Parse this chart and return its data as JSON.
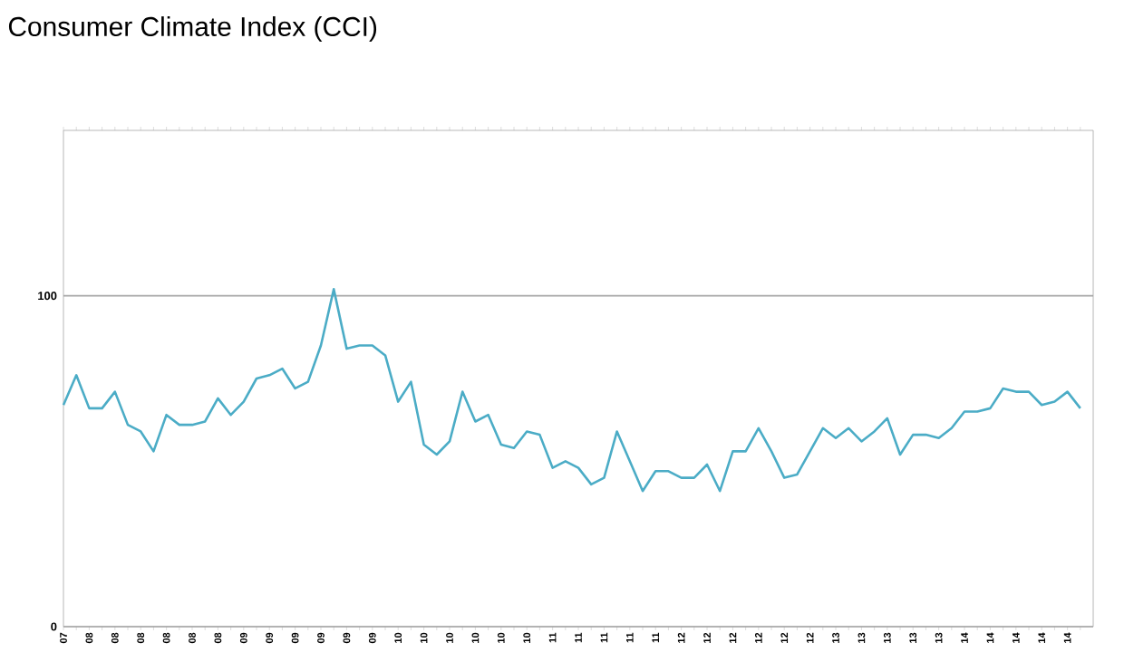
{
  "chart_data": {
    "type": "line",
    "title": "Consumer Climate Index (CCI)",
    "categories": [
      "07",
      null,
      "08",
      null,
      "08",
      null,
      "08",
      null,
      "08",
      null,
      "08",
      null,
      "08",
      null,
      "09",
      null,
      "09",
      null,
      "09",
      null,
      "09",
      null,
      "09",
      null,
      "09",
      null,
      "10",
      null,
      "10",
      null,
      "10",
      null,
      "10",
      null,
      "10",
      null,
      "10",
      null,
      "11",
      null,
      "11",
      null,
      "11",
      null,
      "11",
      null,
      "11",
      null,
      "12",
      null,
      "12",
      null,
      "12",
      null,
      "12",
      null,
      "12",
      null,
      "12",
      null,
      "13",
      null,
      "13",
      null,
      "13",
      null,
      "13",
      null,
      "13",
      null,
      "14",
      null,
      "14",
      null,
      "14",
      null,
      "14",
      null,
      "14",
      null
    ],
    "values": [
      67,
      76,
      66,
      66,
      71,
      61,
      59,
      53,
      64,
      61,
      61,
      62,
      69,
      64,
      68,
      75,
      76,
      78,
      72,
      74,
      85,
      102,
      84,
      85,
      85,
      82,
      68,
      74,
      55,
      52,
      56,
      71,
      62,
      64,
      55,
      54,
      59,
      58,
      48,
      50,
      48,
      43,
      45,
      59,
      50,
      41,
      47,
      47,
      45,
      45,
      49,
      41,
      53,
      53,
      60,
      53,
      45,
      46,
      53,
      60,
      57,
      60,
      56,
      59,
      63,
      52,
      58,
      58,
      57,
      60,
      65,
      65,
      66,
      72,
      71,
      71,
      67,
      68,
      71,
      66
    ],
    "color": "#4bacc6",
    "ylim": [
      0,
      150
    ],
    "yticks": [
      0,
      100
    ],
    "grid": "y"
  }
}
